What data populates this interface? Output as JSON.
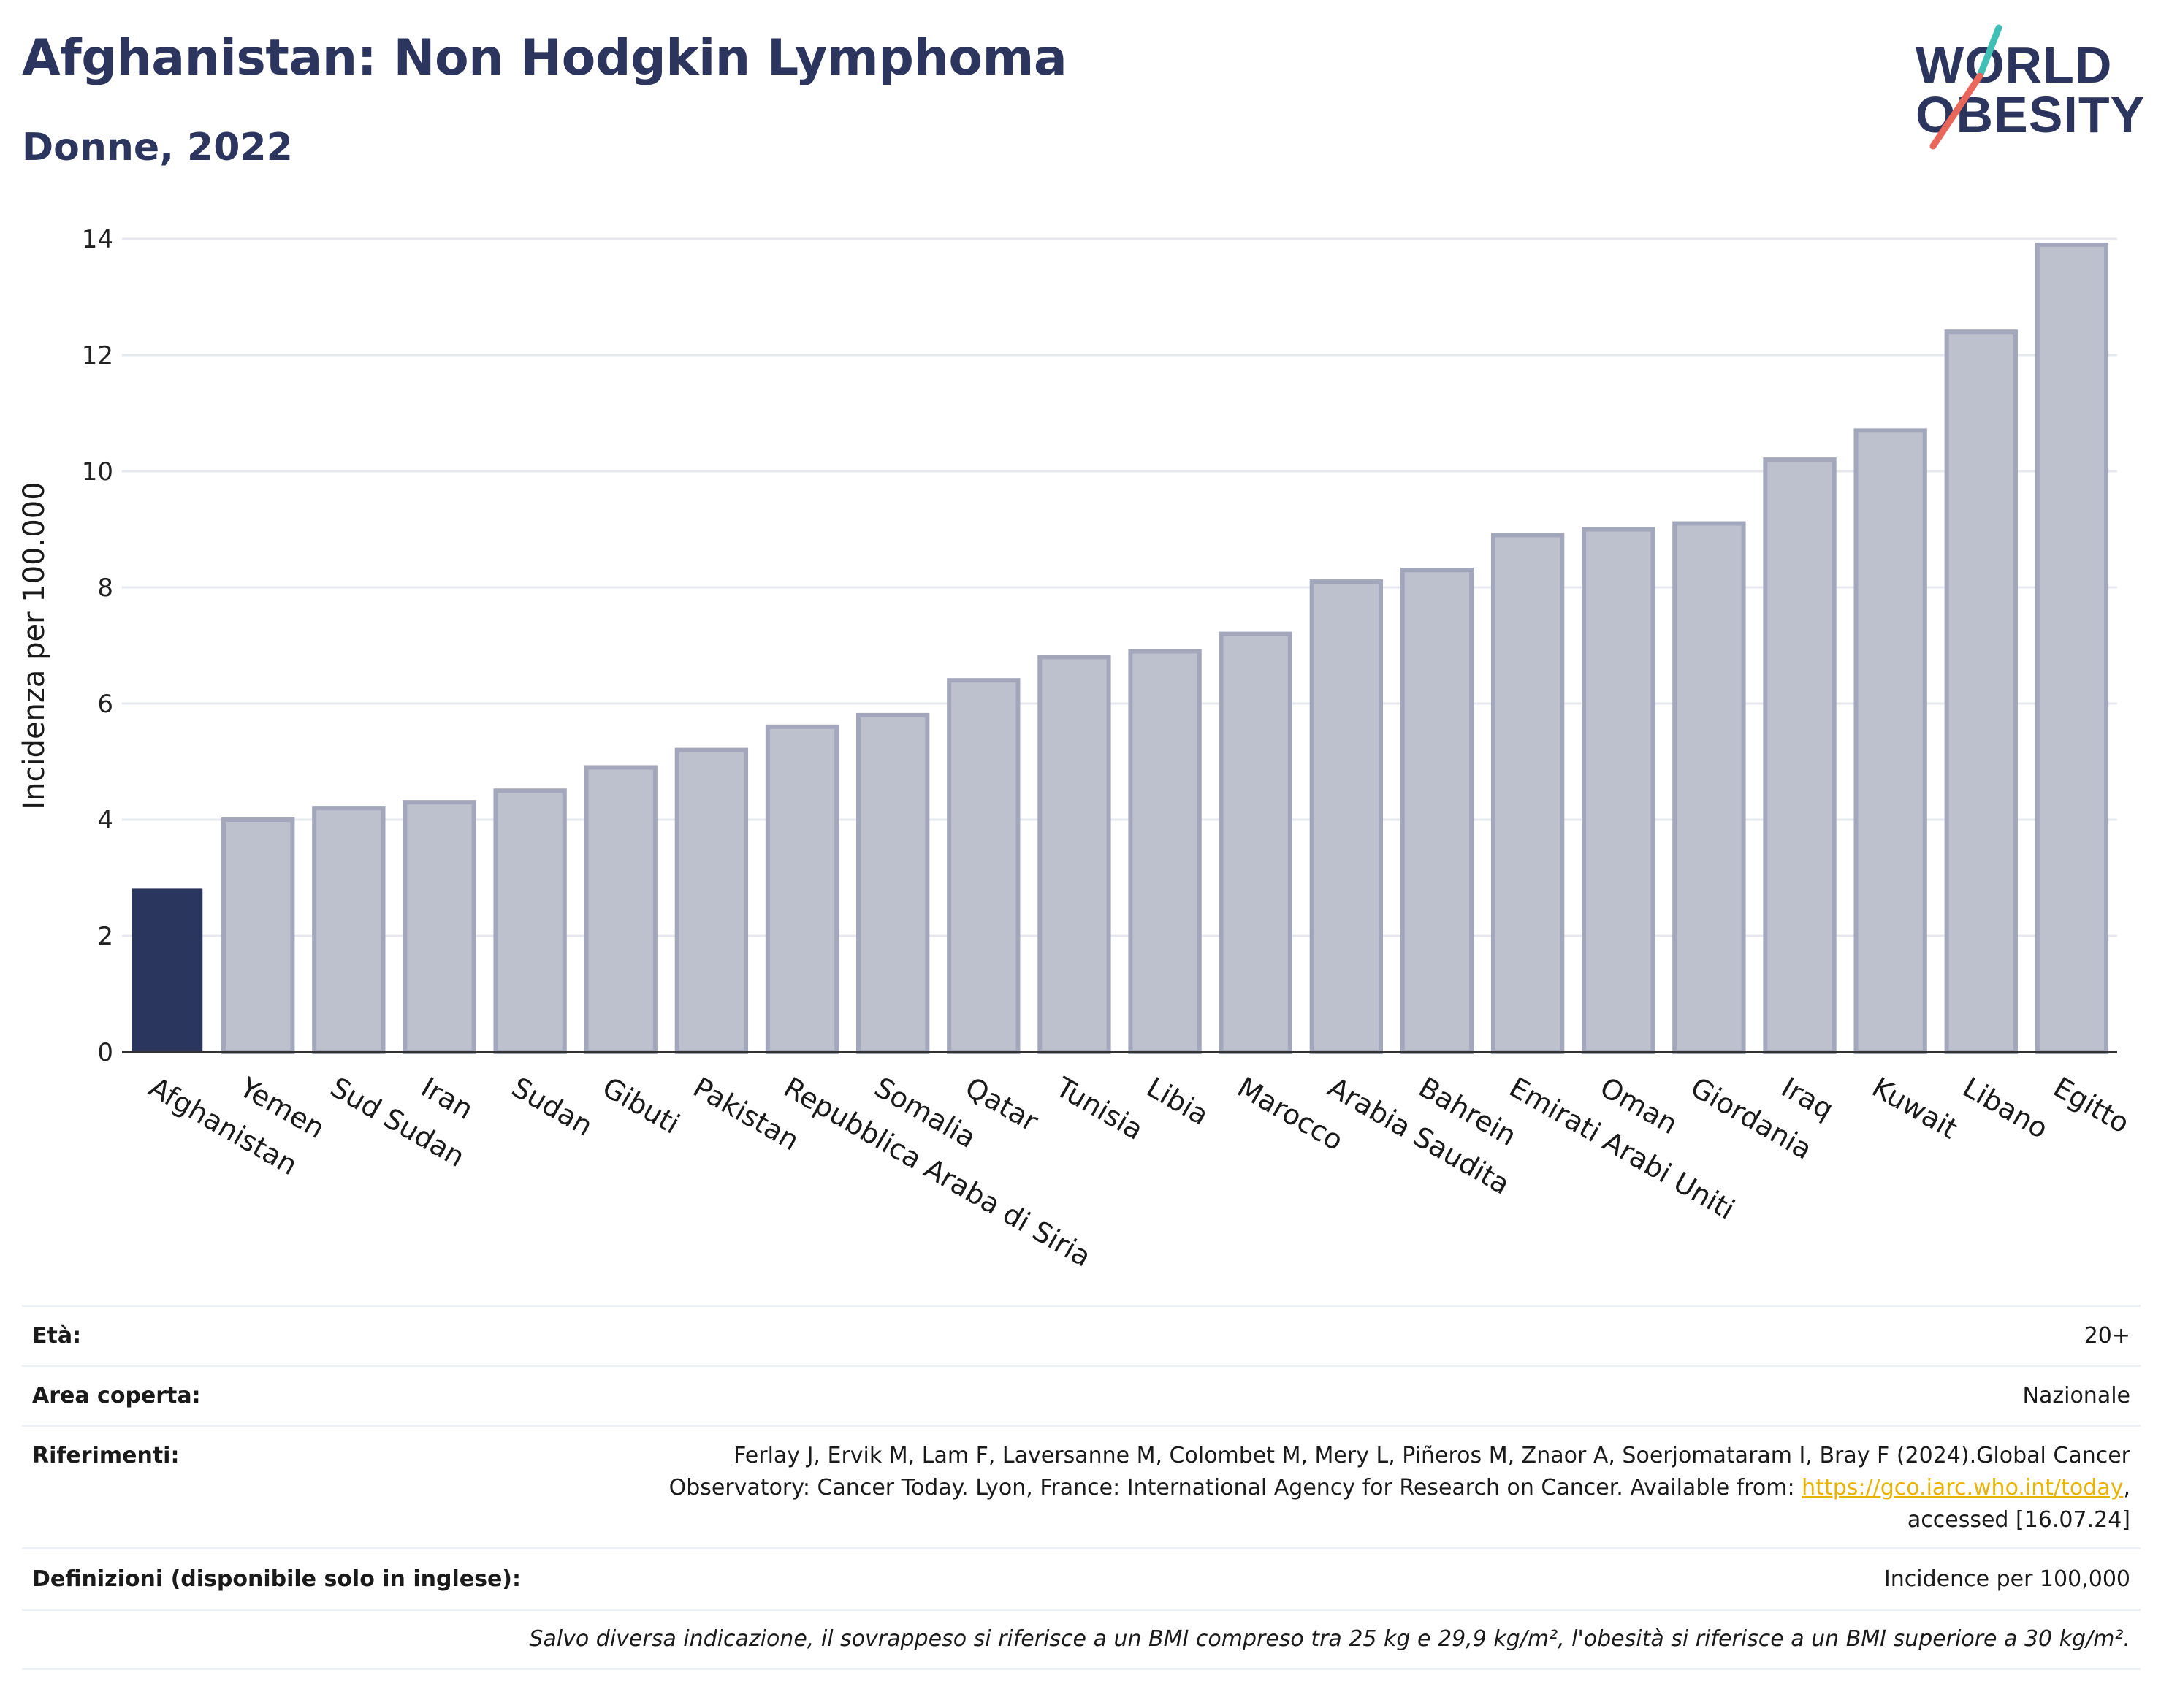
{
  "header": {
    "title": "Afghanistan: Non Hodgkin Lymphoma",
    "subtitle": "Donne, 2022"
  },
  "logo": {
    "line1": "WORLD",
    "line2": "OBESITY",
    "colors": {
      "text": "#2b355e",
      "slash_top": "#3fbfb5",
      "slash_bottom": "#e8675a"
    }
  },
  "chart_data": {
    "type": "bar",
    "title": "",
    "xlabel": "",
    "ylabel": "Incidenza per 100.000",
    "ylim": [
      0,
      14
    ],
    "yticks": [
      0,
      2,
      4,
      6,
      8,
      10,
      12,
      14
    ],
    "grid": true,
    "categories": [
      "Afghanistan",
      "Yemen",
      "Sud Sudan",
      "Iran",
      "Sudan",
      "Gibuti",
      "Pakistan",
      "Repubblica Araba di Siria",
      "Somalia",
      "Qatar",
      "Tunisia",
      "Libia",
      "Marocco",
      "Arabia Saudita",
      "Bahrein",
      "Emirati Arabi Uniti",
      "Oman",
      "Giordania",
      "Iraq",
      "Kuwait",
      "Libano",
      "Egitto"
    ],
    "values": [
      2.8,
      4.0,
      4.2,
      4.3,
      4.5,
      4.9,
      5.2,
      5.6,
      5.8,
      6.4,
      6.8,
      6.9,
      7.2,
      8.1,
      8.3,
      8.9,
      9.0,
      9.1,
      10.2,
      10.7,
      12.4,
      13.9
    ],
    "highlight_index": 0,
    "colors": {
      "highlight": "#2b365f",
      "bar_fill": "#bdc0cd",
      "bar_stroke": "#a2a7bb",
      "grid": "#e6e8ee",
      "axis": "#333333"
    }
  },
  "info": {
    "eta": {
      "label": "Età:",
      "value": "20+"
    },
    "area": {
      "label": "Area coperta:",
      "value": "Nazionale"
    },
    "riferimenti": {
      "label": "Riferimenti:",
      "line1": "Ferlay J, Ervik M, Lam F, Laversanne M, Colombet M, Mery L, Piñeros M, Znaor A, Soerjomataram I, Bray F (2024).Global Cancer",
      "line2_pre": "Observatory: Cancer Today. Lyon, France: International Agency for Research on Cancer. Available from: ",
      "link": "https://gco.iarc.who.int/today",
      "line2_post": ",",
      "line3": "accessed [16.07.24]"
    },
    "definizioni": {
      "label": "Definizioni (disponibile solo in inglese):",
      "value": "Incidence per 100,000"
    },
    "nota": "Salvo diversa indicazione, il sovrappeso si riferisce a un BMI compreso tra 25 kg e 29,9 kg/m², l'obesità si riferisce a un BMI superiore a 30 kg/m²."
  }
}
